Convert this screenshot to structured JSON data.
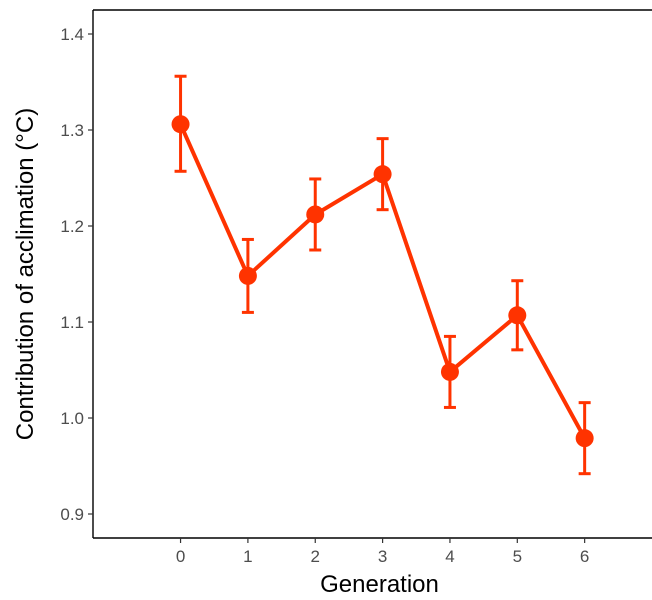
{
  "chart_data": {
    "type": "line",
    "title": "",
    "xlabel": "Generation",
    "ylabel": "Contribution of acclimation (°C)",
    "x": [
      0,
      1,
      2,
      3,
      4,
      5,
      6
    ],
    "series": [
      {
        "values": [
          1.306,
          1.148,
          1.212,
          1.254,
          1.048,
          1.107,
          0.979
        ],
        "error_low": [
          1.257,
          1.11,
          1.175,
          1.217,
          1.011,
          1.071,
          0.942
        ],
        "error_high": [
          1.356,
          1.186,
          1.249,
          1.291,
          1.085,
          1.143,
          1.016
        ],
        "color": "#ff3300"
      }
    ],
    "xlim": [
      -1.3,
      7
    ],
    "ylim": [
      0.875,
      1.425
    ],
    "x_ticks": [
      "0",
      "1",
      "2",
      "3",
      "4",
      "5",
      "6"
    ],
    "y_ticks": [
      "0.9",
      "1.0",
      "1.1",
      "1.2",
      "1.3",
      "1.4"
    ],
    "y_tick_values": [
      0.9,
      1.0,
      1.1,
      1.2,
      1.3,
      1.4
    ],
    "grid": false,
    "legend": "none"
  }
}
